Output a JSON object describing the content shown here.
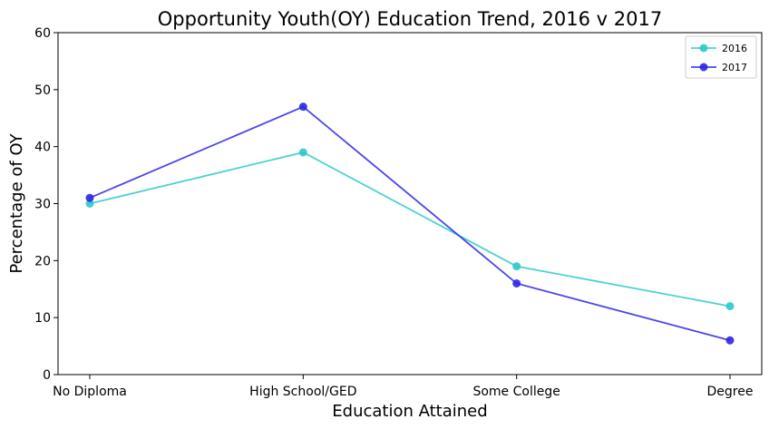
{
  "chart_data": {
    "type": "line",
    "title": "Opportunity Youth(OY) Education Trend, 2016 v 2017",
    "xlabel": "Education Attained",
    "ylabel": "Percentage of OY",
    "categories": [
      "No Diploma",
      "High School/GED",
      "Some College",
      "Degree"
    ],
    "ylim": [
      0,
      60
    ],
    "yticks": [
      0,
      10,
      20,
      30,
      40,
      50,
      60
    ],
    "grid": false,
    "legend": "top-right",
    "series": [
      {
        "name": "2016",
        "values": [
          30,
          39,
          19,
          12
        ],
        "color": "#2ec9c9"
      },
      {
        "name": "2017",
        "values": [
          31,
          47,
          16,
          6
        ],
        "color": "#2b26e6"
      }
    ]
  }
}
